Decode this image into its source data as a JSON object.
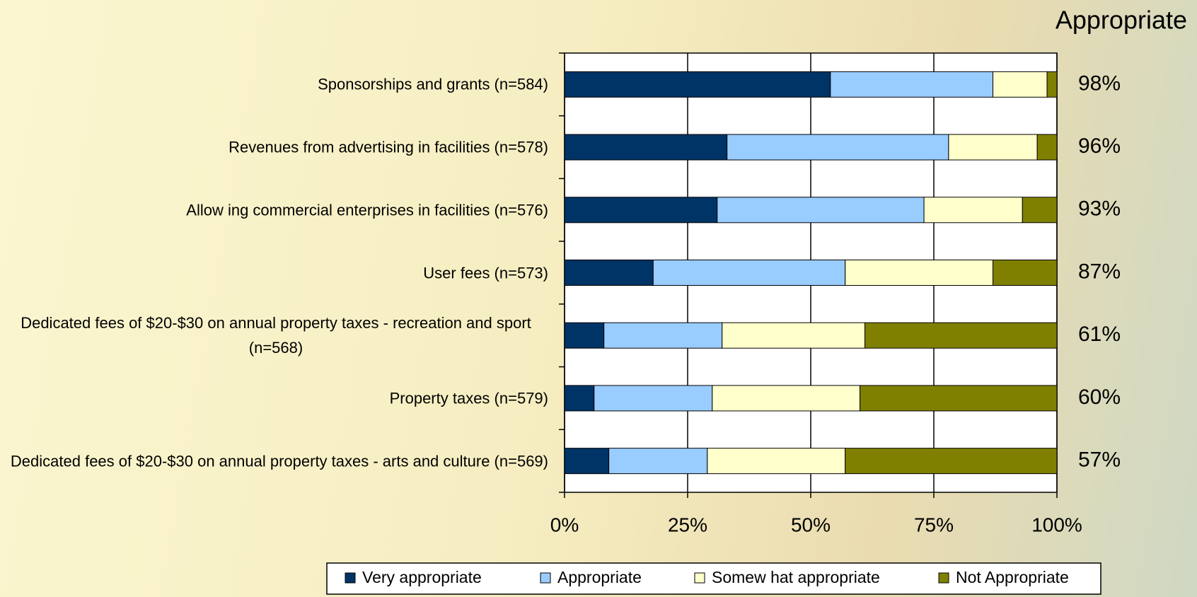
{
  "chart_data": {
    "type": "stacked-bar-horizontal",
    "categories": [
      "Sponsorships and grants (n=584)",
      "Revenues from advertising in facilities (n=578)",
      "Allow ing commercial enterprises in facilities (n=576)",
      "User fees (n=573)",
      "Dedicated fees of $20-$30 on annual property taxes - recreation and sport (n=568)",
      "Property taxes (n=579)",
      "Dedicated fees of $20-$30 on annual property taxes - arts and culture (n=569)"
    ],
    "series": [
      {
        "name": "Very appropriate",
        "color": "#003366",
        "values": [
          54,
          33,
          31,
          18,
          8,
          6,
          9
        ]
      },
      {
        "name": "Appropriate",
        "color": "#99ccff",
        "values": [
          33,
          45,
          42,
          39,
          24,
          24,
          20
        ]
      },
      {
        "name": "Somew hat appropriate",
        "color": "#ffffcc",
        "values": [
          11,
          18,
          20,
          30,
          29,
          30,
          28
        ]
      },
      {
        "name": "Not Appropriate",
        "color": "#808000",
        "values": [
          2,
          4,
          7,
          13,
          39,
          40,
          43
        ]
      }
    ],
    "xlim": [
      0,
      100
    ],
    "xticks": [
      {
        "value": 0,
        "label": "0%"
      },
      {
        "value": 25,
        "label": "25%"
      },
      {
        "value": 50,
        "label": "50%"
      },
      {
        "value": 75,
        "label": "75%"
      },
      {
        "value": 100,
        "label": "100%"
      }
    ],
    "grid": true,
    "appropriate": {
      "title": "Appropriate",
      "values": [
        98,
        96,
        93,
        87,
        61,
        60,
        57
      ],
      "value_labels": [
        "98%",
        "96%",
        "93%",
        "87%",
        "61%",
        "60%",
        "57%"
      ]
    }
  }
}
